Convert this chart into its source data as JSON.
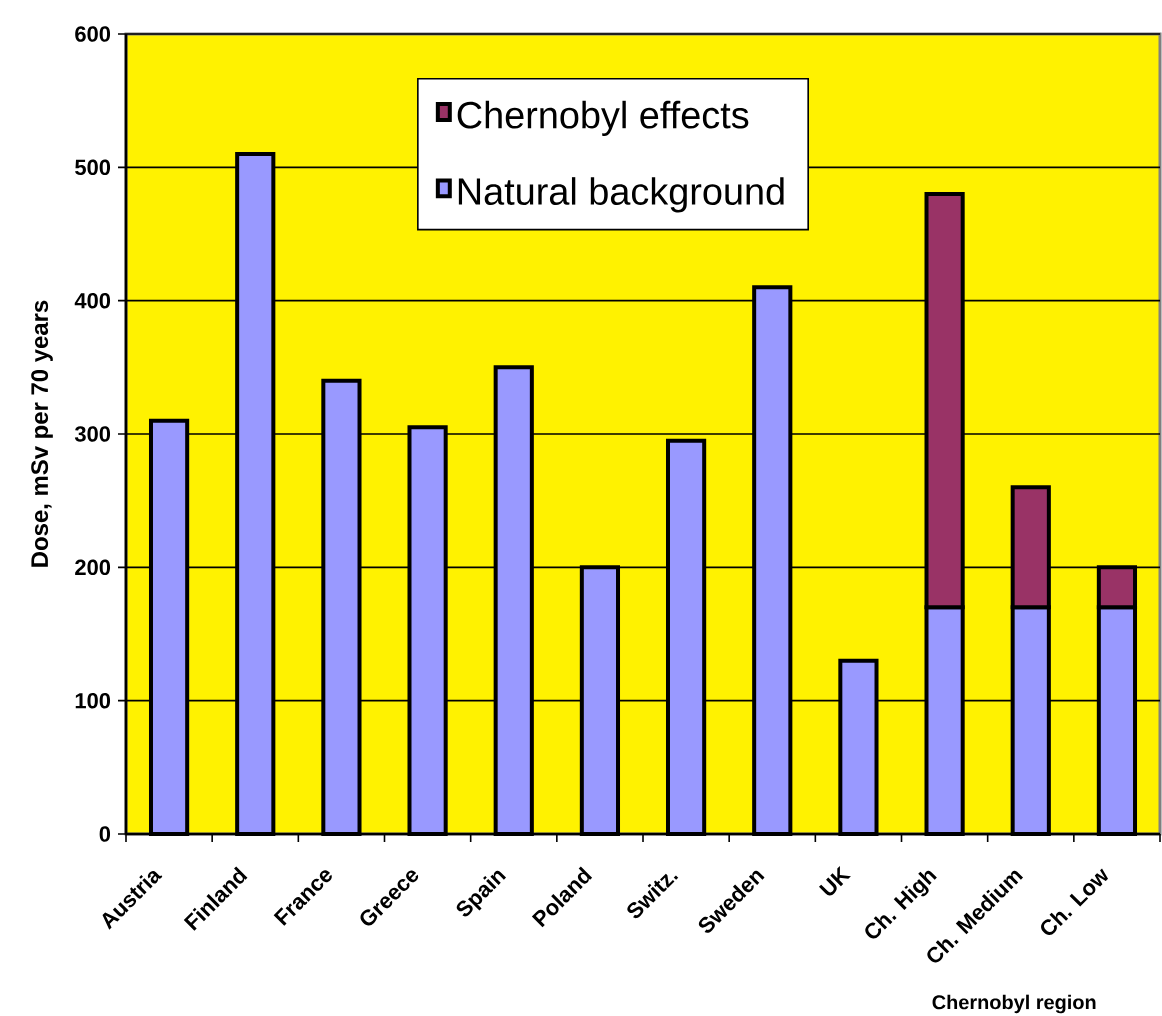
{
  "chart_data": {
    "type": "bar",
    "stacked": true,
    "xlabel": "Chernobyl region",
    "ylabel": "Dose, mSv per 70 years",
    "categories": [
      "Austria",
      "Finland",
      "France",
      "Greece",
      "Spain",
      "Poland",
      "Switz.",
      "Sweden",
      "UK",
      "Ch. High",
      "Ch. Medium",
      "Ch. Low"
    ],
    "series": [
      {
        "name": "Natural background",
        "color": "#9999ff",
        "values": [
          310,
          510,
          340,
          305,
          350,
          200,
          295,
          410,
          130,
          170,
          170,
          170
        ]
      },
      {
        "name": "Chernobyl effects",
        "color": "#993366",
        "values": [
          null,
          null,
          null,
          null,
          null,
          null,
          null,
          null,
          null,
          310,
          90,
          30
        ]
      }
    ],
    "ylim": [
      0,
      600
    ],
    "yticks": [
      0,
      100,
      200,
      300,
      400,
      500,
      600
    ],
    "grid": "y",
    "legend": "top"
  }
}
